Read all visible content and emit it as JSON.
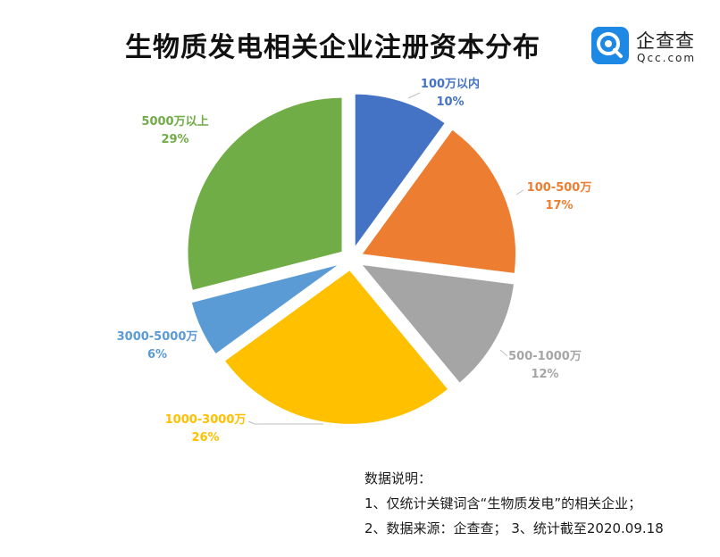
{
  "title": "生物质发电相关企业注册资本分布",
  "logo": {
    "name": "企查查",
    "url": "Qcc.com",
    "icon": "qcc-logo-icon"
  },
  "chart_data": {
    "type": "pie",
    "title": "生物质发电相关企业注册资本分布",
    "exploded": true,
    "start": "12 o'clock, clockwise",
    "slices": [
      {
        "label": "100万以内",
        "value": 10,
        "pct_label": "10%",
        "color": "#4472c4"
      },
      {
        "label": "100-500万",
        "value": 17,
        "pct_label": "17%",
        "color": "#ed7d31"
      },
      {
        "label": "500-1000万",
        "value": 12,
        "pct_label": "12%",
        "color": "#a5a5a5"
      },
      {
        "label": "1000-3000万",
        "value": 26,
        "pct_label": "26%",
        "color": "#ffc000"
      },
      {
        "label": "3000-5000万",
        "value": 6,
        "pct_label": "6%",
        "color": "#5b9bd5"
      },
      {
        "label": "5000万以上",
        "value": 29,
        "pct_label": "29%",
        "color": "#70ad47"
      }
    ]
  },
  "notes": {
    "heading": "数据说明：",
    "line1": "1、仅统计关键词含“生物质发电”的相关企业；",
    "line2": "2、数据来源：企查查；   3、统计截至2020.09.18"
  }
}
